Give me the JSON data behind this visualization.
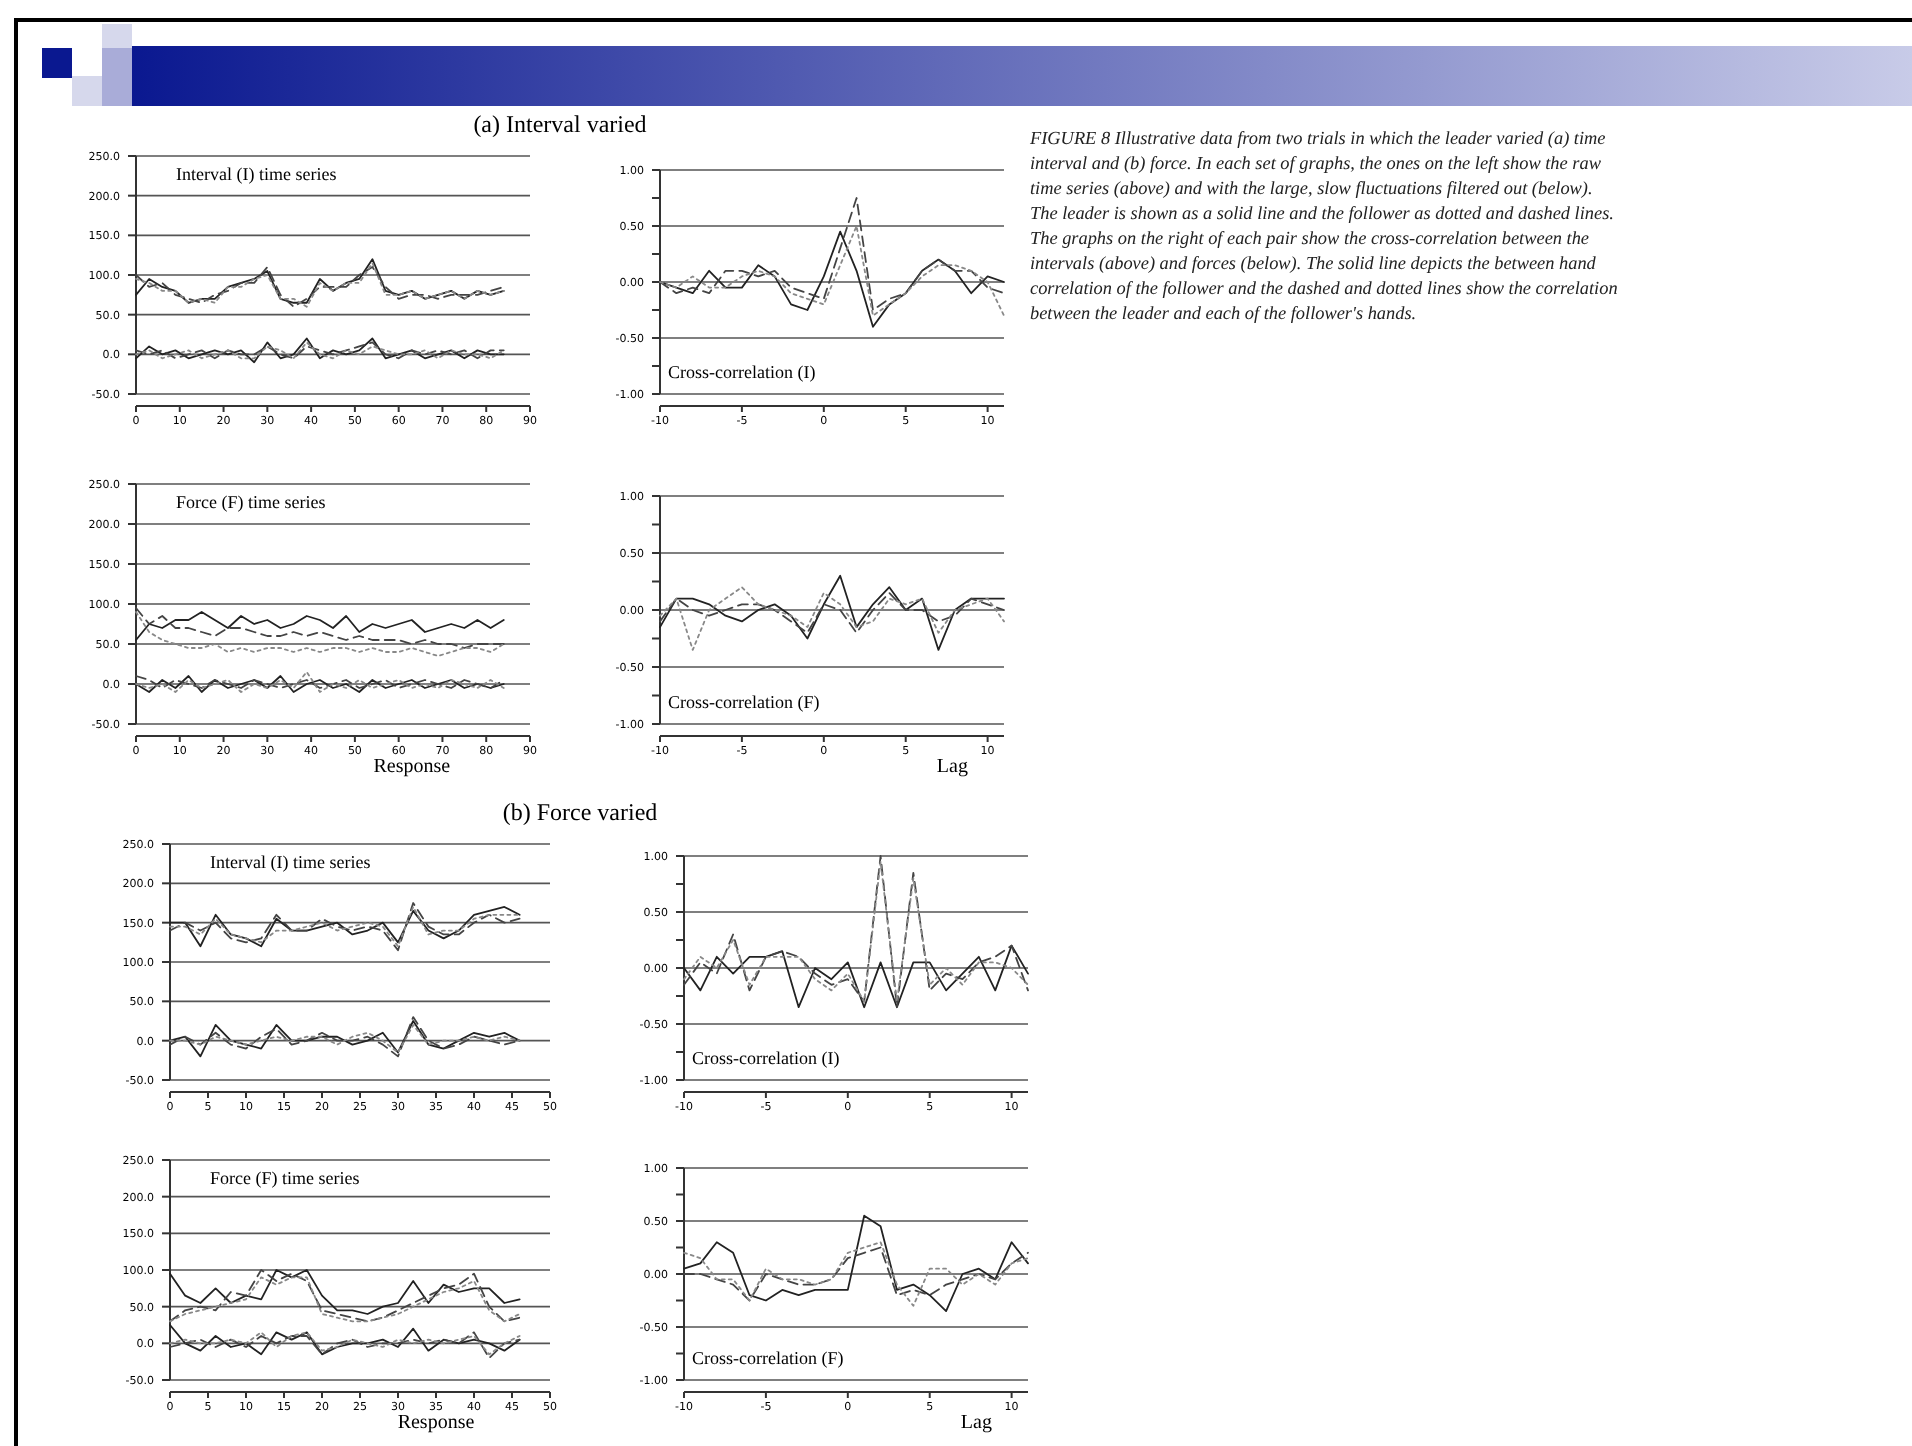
{
  "chart_data": [
    {
      "type": "line",
      "title": "(a) Interval varied",
      "annotations": [
        "Interval (I) time series"
      ],
      "x": [
        0,
        3,
        6,
        9,
        12,
        15,
        18,
        21,
        24,
        27,
        30,
        33,
        36,
        39,
        42,
        45,
        48,
        51,
        54,
        57,
        60,
        63,
        66,
        69,
        72,
        75,
        78,
        81,
        84
      ],
      "xlim": [
        0,
        90
      ],
      "ylim": [
        -50,
        250
      ],
      "xticks": [
        0,
        10,
        20,
        30,
        40,
        50,
        60,
        70,
        80,
        90
      ],
      "yticks": [
        {
          "value": -50,
          "label": "-50.0"
        },
        {
          "value": 0,
          "label": "0.0"
        },
        {
          "value": 50,
          "label": "50.0"
        },
        {
          "value": 100,
          "label": "100.0"
        },
        {
          "value": 150,
          "label": "150.0"
        },
        {
          "value": 200,
          "label": "200.0"
        },
        {
          "value": 250,
          "label": "250.0"
        }
      ],
      "grid": "y",
      "series": [
        {
          "color": "#222222",
          "line_style": "solid",
          "values": [
            75,
            95,
            85,
            80,
            65,
            70,
            70,
            85,
            90,
            95,
            105,
            70,
            65,
            65,
            95,
            80,
            90,
            95,
            120,
            80,
            75,
            80,
            70,
            75,
            80,
            70,
            80,
            75,
            80
          ]
        },
        {
          "color": "#444444",
          "line_style": "dashed",
          "values": [
            100,
            85,
            90,
            75,
            70,
            65,
            75,
            80,
            90,
            90,
            110,
            75,
            60,
            70,
            85,
            85,
            85,
            100,
            110,
            85,
            70,
            75,
            75,
            70,
            75,
            75,
            75,
            80,
            85
          ]
        },
        {
          "color": "#888888",
          "line_style": "dotted",
          "values": [
            95,
            90,
            80,
            80,
            65,
            70,
            65,
            85,
            85,
            95,
            100,
            70,
            70,
            60,
            90,
            80,
            90,
            90,
            115,
            75,
            75,
            80,
            70,
            75,
            80,
            70,
            80,
            75,
            80
          ]
        },
        {
          "color": "#222222",
          "line_style": "solid",
          "values": [
            -5,
            10,
            0,
            5,
            -5,
            0,
            5,
            0,
            5,
            -10,
            15,
            -5,
            0,
            20,
            -5,
            5,
            0,
            5,
            20,
            -5,
            0,
            5,
            -5,
            0,
            5,
            -5,
            5,
            0,
            0
          ]
        },
        {
          "color": "#444444",
          "line_style": "dashed",
          "values": [
            5,
            0,
            5,
            -5,
            0,
            5,
            -5,
            5,
            0,
            0,
            10,
            0,
            -5,
            10,
            5,
            0,
            5,
            10,
            15,
            0,
            -5,
            5,
            0,
            5,
            0,
            5,
            -5,
            5,
            5
          ]
        },
        {
          "color": "#888888",
          "line_style": "dotted",
          "values": [
            0,
            5,
            -5,
            0,
            5,
            -5,
            0,
            5,
            -5,
            -5,
            10,
            5,
            -5,
            15,
            0,
            -5,
            5,
            0,
            10,
            5,
            0,
            0,
            5,
            -5,
            5,
            0,
            0,
            -5,
            5
          ]
        }
      ]
    },
    {
      "type": "line",
      "annotations": [
        "Cross-correlation (I)"
      ],
      "x": [
        -10,
        -9,
        -8,
        -7,
        -6,
        -5,
        -4,
        -3,
        -2,
        -1,
        0,
        1,
        2,
        3,
        4,
        5,
        6,
        7,
        8,
        9,
        10,
        11
      ],
      "xlim": [
        -10,
        11
      ],
      "ylim": [
        -1,
        1
      ],
      "xticks": [
        -10,
        -5,
        0,
        5,
        10
      ],
      "yticks": [
        {
          "value": -1,
          "label": "-1.00"
        },
        {
          "value": -0.75,
          "label": null
        },
        {
          "value": -0.5,
          "label": "-0.50"
        },
        {
          "value": -0.25,
          "label": null
        },
        {
          "value": 0,
          "label": "0.00"
        },
        {
          "value": 0.25,
          "label": null
        },
        {
          "value": 0.5,
          "label": "0.50"
        },
        {
          "value": 0.75,
          "label": null
        },
        {
          "value": 1,
          "label": "1.00"
        }
      ],
      "grid": "y",
      "series": [
        {
          "color": "#222222",
          "line_style": "solid",
          "values": [
            0,
            -0.05,
            -0.1,
            0.1,
            -0.05,
            -0.05,
            0.15,
            0.05,
            -0.2,
            -0.25,
            0.05,
            0.45,
            0.1,
            -0.4,
            -0.2,
            -0.1,
            0.1,
            0.2,
            0.1,
            -0.1,
            0.05,
            0
          ]
        },
        {
          "color": "#444444",
          "line_style": "dashed",
          "values": [
            0,
            -0.1,
            -0.05,
            -0.1,
            0.1,
            0.1,
            0.05,
            0.1,
            -0.05,
            -0.1,
            -0.15,
            0.3,
            0.75,
            -0.25,
            -0.15,
            -0.1,
            0.1,
            0.2,
            0.1,
            0.1,
            -0.05,
            -0.1
          ]
        },
        {
          "color": "#888888",
          "line_style": "dotted",
          "values": [
            0,
            -0.05,
            0.05,
            -0.05,
            -0.05,
            0.05,
            0.1,
            0.05,
            -0.1,
            -0.15,
            -0.2,
            0.15,
            0.5,
            -0.3,
            -0.2,
            -0.1,
            0.05,
            0.15,
            0.15,
            0.1,
            0,
            -0.3
          ]
        }
      ]
    },
    {
      "type": "line",
      "xlabel": "Response",
      "annotations": [
        "Force (F) time series"
      ],
      "x": [
        0,
        3,
        6,
        9,
        12,
        15,
        18,
        21,
        24,
        27,
        30,
        33,
        36,
        39,
        42,
        45,
        48,
        51,
        54,
        57,
        60,
        63,
        66,
        69,
        72,
        75,
        78,
        81,
        84
      ],
      "xlim": [
        0,
        90
      ],
      "ylim": [
        -50,
        250
      ],
      "xticks": [
        0,
        10,
        20,
        30,
        40,
        50,
        60,
        70,
        80,
        90
      ],
      "yticks": [
        {
          "value": -50,
          "label": "-50.0"
        },
        {
          "value": 0,
          "label": "0.0"
        },
        {
          "value": 50,
          "label": "50.0"
        },
        {
          "value": 100,
          "label": "100.0"
        },
        {
          "value": 150,
          "label": "150.0"
        },
        {
          "value": 200,
          "label": "200.0"
        },
        {
          "value": 250,
          "label": "250.0"
        }
      ],
      "grid": "y",
      "series": [
        {
          "color": "#222222",
          "line_style": "solid",
          "values": [
            55,
            75,
            70,
            80,
            80,
            90,
            80,
            70,
            85,
            75,
            80,
            70,
            75,
            85,
            80,
            70,
            85,
            65,
            75,
            70,
            75,
            80,
            65,
            70,
            75,
            70,
            80,
            70,
            80
          ]
        },
        {
          "color": "#444444",
          "line_style": "dashed",
          "values": [
            95,
            75,
            85,
            70,
            70,
            65,
            60,
            70,
            70,
            65,
            60,
            60,
            65,
            60,
            65,
            60,
            55,
            60,
            55,
            55,
            55,
            50,
            55,
            50,
            50,
            45,
            50,
            50,
            50
          ]
        },
        {
          "color": "#888888",
          "line_style": "dotted",
          "values": [
            90,
            65,
            55,
            50,
            45,
            45,
            50,
            40,
            45,
            40,
            45,
            45,
            40,
            45,
            40,
            45,
            45,
            40,
            45,
            40,
            40,
            45,
            40,
            35,
            40,
            45,
            45,
            40,
            50
          ]
        },
        {
          "color": "#222222",
          "line_style": "solid",
          "values": [
            0,
            -10,
            5,
            -5,
            10,
            -10,
            5,
            -5,
            0,
            5,
            -5,
            10,
            -10,
            0,
            5,
            -5,
            0,
            -10,
            5,
            -5,
            0,
            5,
            -5,
            0,
            5,
            -5,
            0,
            -5,
            0
          ]
        },
        {
          "color": "#444444",
          "line_style": "dashed",
          "values": [
            10,
            5,
            -5,
            5,
            0,
            -5,
            5,
            0,
            -5,
            5,
            0,
            -5,
            0,
            5,
            -5,
            0,
            5,
            -5,
            0,
            5,
            -5,
            0,
            5,
            0,
            -5,
            5,
            0,
            -5,
            5
          ]
        },
        {
          "color": "#888888",
          "line_style": "dotted",
          "values": [
            0,
            -5,
            0,
            -10,
            5,
            -5,
            0,
            5,
            -10,
            0,
            -5,
            5,
            -5,
            15,
            -10,
            0,
            -5,
            5,
            -5,
            0,
            5,
            -5,
            0,
            -5,
            5,
            0,
            -5,
            5,
            -5
          ]
        }
      ]
    },
    {
      "type": "line",
      "xlabel": "Lag",
      "annotations": [
        "Cross-correlation (F)"
      ],
      "x": [
        -10,
        -9,
        -8,
        -7,
        -6,
        -5,
        -4,
        -3,
        -2,
        -1,
        0,
        1,
        2,
        3,
        4,
        5,
        6,
        7,
        8,
        9,
        10,
        11
      ],
      "xlim": [
        -10,
        11
      ],
      "ylim": [
        -1,
        1
      ],
      "xticks": [
        -10,
        -5,
        0,
        5,
        10
      ],
      "yticks": [
        {
          "value": -1,
          "label": "-1.00"
        },
        {
          "value": -0.75,
          "label": null
        },
        {
          "value": -0.5,
          "label": "-0.50"
        },
        {
          "value": -0.25,
          "label": null
        },
        {
          "value": 0,
          "label": "0.00"
        },
        {
          "value": 0.25,
          "label": null
        },
        {
          "value": 0.5,
          "label": "0.50"
        },
        {
          "value": 0.75,
          "label": null
        },
        {
          "value": 1,
          "label": "1.00"
        }
      ],
      "grid": "y",
      "series": [
        {
          "color": "#222222",
          "line_style": "solid",
          "values": [
            -0.15,
            0.1,
            0.1,
            0.05,
            -0.05,
            -0.1,
            0,
            0.05,
            -0.05,
            -0.25,
            0.05,
            0.3,
            -0.15,
            0.05,
            0.2,
            0,
            0.1,
            -0.35,
            0,
            0.1,
            0.1,
            0.1
          ]
        },
        {
          "color": "#444444",
          "line_style": "dashed",
          "values": [
            -0.1,
            0.1,
            0,
            -0.05,
            0,
            0.05,
            0.05,
            0,
            -0.1,
            -0.2,
            0.05,
            0,
            -0.2,
            0,
            0.15,
            0,
            0,
            -0.1,
            -0.05,
            0.1,
            0.05,
            0
          ]
        },
        {
          "color": "#888888",
          "line_style": "dotted",
          "values": [
            -0.05,
            0.1,
            -0.35,
            0,
            0.1,
            0.2,
            0.05,
            0,
            -0.05,
            -0.15,
            0.15,
            0.05,
            -0.15,
            -0.1,
            0.1,
            0.05,
            0.1,
            -0.2,
            0,
            0.05,
            0.1,
            -0.1
          ]
        }
      ]
    },
    {
      "type": "line",
      "title": "(b) Force varied",
      "annotations": [
        "Interval (I) time series"
      ],
      "x": [
        0,
        2,
        4,
        6,
        8,
        10,
        12,
        14,
        16,
        18,
        20,
        22,
        24,
        26,
        28,
        30,
        32,
        34,
        36,
        38,
        40,
        42,
        44,
        46
      ],
      "xlim": [
        0,
        50
      ],
      "ylim": [
        -50,
        250
      ],
      "xticks": [
        0,
        5,
        10,
        15,
        20,
        25,
        30,
        35,
        40,
        45,
        50
      ],
      "yticks": [
        {
          "value": -50,
          "label": "-50.0"
        },
        {
          "value": 0,
          "label": "0.0"
        },
        {
          "value": 50,
          "label": "50.0"
        },
        {
          "value": 100,
          "label": "100.0"
        },
        {
          "value": 150,
          "label": "150.0"
        },
        {
          "value": 200,
          "label": "200.0"
        },
        {
          "value": 250,
          "label": "250.0"
        }
      ],
      "grid": "y",
      "series": [
        {
          "color": "#222222",
          "line_style": "solid",
          "values": [
            150,
            150,
            120,
            160,
            135,
            130,
            120,
            155,
            140,
            140,
            145,
            150,
            135,
            140,
            150,
            125,
            165,
            140,
            130,
            140,
            160,
            165,
            170,
            160
          ]
        },
        {
          "color": "#444444",
          "line_style": "dashed",
          "values": [
            140,
            150,
            140,
            150,
            130,
            125,
            130,
            160,
            140,
            140,
            155,
            145,
            140,
            145,
            140,
            115,
            175,
            145,
            135,
            135,
            150,
            160,
            150,
            155
          ]
        },
        {
          "color": "#888888",
          "line_style": "dotted",
          "values": [
            145,
            145,
            135,
            155,
            135,
            130,
            125,
            140,
            140,
            145,
            150,
            140,
            145,
            150,
            145,
            120,
            170,
            135,
            140,
            140,
            155,
            160,
            160,
            160
          ]
        },
        {
          "color": "#222222",
          "line_style": "solid",
          "values": [
            0,
            5,
            -20,
            20,
            0,
            -5,
            -10,
            20,
            0,
            0,
            5,
            5,
            -5,
            0,
            10,
            -15,
            25,
            -5,
            -10,
            0,
            10,
            5,
            10,
            0
          ]
        },
        {
          "color": "#444444",
          "line_style": "dashed",
          "values": [
            -5,
            5,
            -5,
            10,
            -5,
            -10,
            5,
            15,
            -5,
            0,
            10,
            0,
            0,
            5,
            -5,
            -20,
            30,
            0,
            -10,
            -5,
            5,
            0,
            -5,
            0
          ]
        },
        {
          "color": "#888888",
          "line_style": "dotted",
          "values": [
            0,
            0,
            -5,
            5,
            0,
            -5,
            0,
            5,
            0,
            5,
            5,
            -5,
            5,
            10,
            0,
            -15,
            20,
            -5,
            0,
            0,
            5,
            0,
            5,
            0
          ]
        }
      ]
    },
    {
      "type": "line",
      "annotations": [
        "Cross-correlation (I)"
      ],
      "x": [
        -10,
        -9,
        -8,
        -7,
        -6,
        -5,
        -4,
        -3,
        -2,
        -1,
        0,
        1,
        2,
        3,
        4,
        5,
        6,
        7,
        8,
        9,
        10,
        11
      ],
      "xlim": [
        -10,
        11
      ],
      "ylim": [
        -1,
        1
      ],
      "xticks": [
        -10,
        -5,
        0,
        5,
        10
      ],
      "yticks": [
        {
          "value": -1,
          "label": "-1.00"
        },
        {
          "value": -0.75,
          "label": null
        },
        {
          "value": -0.5,
          "label": "-0.50"
        },
        {
          "value": -0.25,
          "label": null
        },
        {
          "value": 0,
          "label": "0.00"
        },
        {
          "value": 0.25,
          "label": null
        },
        {
          "value": 0.5,
          "label": "0.50"
        },
        {
          "value": 0.75,
          "label": null
        },
        {
          "value": 1,
          "label": "1.00"
        }
      ],
      "grid": "y",
      "series": [
        {
          "color": "#222222",
          "line_style": "solid",
          "values": [
            0,
            -0.2,
            0.1,
            -0.05,
            0.1,
            0.1,
            0.15,
            -0.35,
            0,
            -0.1,
            0.05,
            -0.35,
            0.05,
            -0.35,
            0.05,
            0.05,
            -0.2,
            -0.05,
            0.1,
            -0.2,
            0.2,
            -0.05
          ]
        },
        {
          "color": "#444444",
          "line_style": "dashed",
          "values": [
            -0.15,
            0.05,
            -0.05,
            0.3,
            -0.2,
            0.1,
            0.15,
            0.1,
            -0.05,
            -0.15,
            -0.1,
            -0.3,
            1,
            -0.35,
            0.85,
            -0.2,
            -0.05,
            -0.1,
            0.05,
            0.1,
            0.2,
            -0.2
          ]
        },
        {
          "color": "#888888",
          "line_style": "dotted",
          "values": [
            -0.1,
            0.1,
            0,
            0.25,
            -0.15,
            0.1,
            0.1,
            0.1,
            -0.1,
            -0.2,
            -0.05,
            -0.3,
            0.95,
            -0.3,
            0.8,
            -0.15,
            0,
            -0.15,
            0.05,
            0.05,
            0,
            -0.15
          ]
        }
      ]
    },
    {
      "type": "line",
      "xlabel": "Response",
      "annotations": [
        "Force (F) time series"
      ],
      "x": [
        0,
        2,
        4,
        6,
        8,
        10,
        12,
        14,
        16,
        18,
        20,
        22,
        24,
        26,
        28,
        30,
        32,
        34,
        36,
        38,
        40,
        42,
        44,
        46
      ],
      "xlim": [
        0,
        50
      ],
      "ylim": [
        -50,
        250
      ],
      "xticks": [
        0,
        5,
        10,
        15,
        20,
        25,
        30,
        35,
        40,
        45,
        50
      ],
      "yticks": [
        {
          "value": -50,
          "label": "-50.0"
        },
        {
          "value": 0,
          "label": "0.0"
        },
        {
          "value": 50,
          "label": "50.0"
        },
        {
          "value": 100,
          "label": "100.0"
        },
        {
          "value": 150,
          "label": "150.0"
        },
        {
          "value": 200,
          "label": "200.0"
        },
        {
          "value": 250,
          "label": "250.0"
        }
      ],
      "grid": "y",
      "series": [
        {
          "color": "#222222",
          "line_style": "solid",
          "values": [
            95,
            65,
            55,
            75,
            55,
            65,
            60,
            100,
            90,
            100,
            65,
            45,
            45,
            40,
            50,
            55,
            85,
            55,
            80,
            70,
            75,
            75,
            55,
            60
          ]
        },
        {
          "color": "#444444",
          "line_style": "dashed",
          "values": [
            30,
            45,
            50,
            45,
            70,
            65,
            100,
            85,
            95,
            85,
            45,
            40,
            35,
            30,
            35,
            45,
            55,
            65,
            75,
            80,
            95,
            50,
            30,
            35
          ]
        },
        {
          "color": "#888888",
          "line_style": "dotted",
          "values": [
            30,
            40,
            45,
            50,
            55,
            60,
            90,
            80,
            90,
            90,
            40,
            35,
            30,
            30,
            35,
            40,
            50,
            60,
            70,
            75,
            85,
            45,
            30,
            40
          ]
        },
        {
          "color": "#222222",
          "line_style": "solid",
          "values": [
            25,
            0,
            -10,
            10,
            -5,
            0,
            -15,
            15,
            5,
            15,
            -15,
            -5,
            0,
            0,
            5,
            -5,
            20,
            -10,
            5,
            0,
            5,
            0,
            -10,
            5
          ]
        },
        {
          "color": "#444444",
          "line_style": "dashed",
          "values": [
            -5,
            0,
            5,
            -5,
            5,
            -5,
            10,
            0,
            10,
            10,
            -15,
            0,
            5,
            -5,
            0,
            0,
            5,
            0,
            5,
            0,
            15,
            -20,
            0,
            5
          ]
        },
        {
          "color": "#888888",
          "line_style": "dotted",
          "values": [
            0,
            5,
            0,
            0,
            5,
            0,
            15,
            -5,
            10,
            15,
            -10,
            -5,
            5,
            0,
            -5,
            5,
            0,
            5,
            0,
            5,
            10,
            -15,
            0,
            10
          ]
        }
      ]
    },
    {
      "type": "line",
      "xlabel": "Lag",
      "annotations": [
        "Cross-correlation (F)"
      ],
      "x": [
        -10,
        -9,
        -8,
        -7,
        -6,
        -5,
        -4,
        -3,
        -2,
        -1,
        0,
        1,
        2,
        3,
        4,
        5,
        6,
        7,
        8,
        9,
        10,
        11
      ],
      "xlim": [
        -10,
        11
      ],
      "ylim": [
        -1,
        1
      ],
      "xticks": [
        -10,
        -5,
        0,
        5,
        10
      ],
      "yticks": [
        {
          "value": -1,
          "label": "-1.00"
        },
        {
          "value": -0.75,
          "label": null
        },
        {
          "value": -0.5,
          "label": "-0.50"
        },
        {
          "value": -0.25,
          "label": null
        },
        {
          "value": 0,
          "label": "0.00"
        },
        {
          "value": 0.25,
          "label": null
        },
        {
          "value": 0.5,
          "label": "0.50"
        },
        {
          "value": 0.75,
          "label": null
        },
        {
          "value": 1,
          "label": "1.00"
        }
      ],
      "grid": "y",
      "series": [
        {
          "color": "#222222",
          "line_style": "solid",
          "values": [
            0.05,
            0.1,
            0.3,
            0.2,
            -0.2,
            -0.25,
            -0.15,
            -0.2,
            -0.15,
            -0.15,
            -0.15,
            0.55,
            0.45,
            -0.15,
            -0.1,
            -0.2,
            -0.35,
            0,
            0.05,
            -0.05,
            0.3,
            0.1
          ]
        },
        {
          "color": "#444444",
          "line_style": "dashed",
          "values": [
            0,
            0,
            -0.05,
            -0.1,
            -0.25,
            0,
            -0.05,
            -0.1,
            -0.1,
            -0.05,
            0.15,
            0.2,
            0.25,
            -0.2,
            -0.15,
            -0.2,
            -0.1,
            -0.05,
            0,
            -0.05,
            0.1,
            0.2
          ]
        },
        {
          "color": "#888888",
          "line_style": "dotted",
          "values": [
            0.2,
            0.15,
            -0.05,
            -0.05,
            -0.25,
            0.05,
            -0.05,
            -0.05,
            -0.1,
            -0.05,
            0.2,
            0.25,
            0.3,
            -0.1,
            -0.3,
            0.05,
            0.05,
            -0.1,
            0,
            -0.1,
            0.1,
            0.15
          ]
        }
      ]
    },
    {
      "type": "other",
      "annotations": [
        "FIGURE 8  Illustrative data from two trials in which the leader varied (a) time interval and (b) force. In each set of graphs, the ones on the left show the raw time series (above) and with the large, slow fluctuations filtered out (below). The leader is shown as a solid line and the follower as dotted and dashed lines. The graphs on the right of each pair show the cross-correlation between the intervals (above) and forces (below). The solid line depicts the between hand correlation of the follower and the dashed and dotted lines show the correlation between the leader and each of the follower's hands."
      ]
    }
  ]
}
